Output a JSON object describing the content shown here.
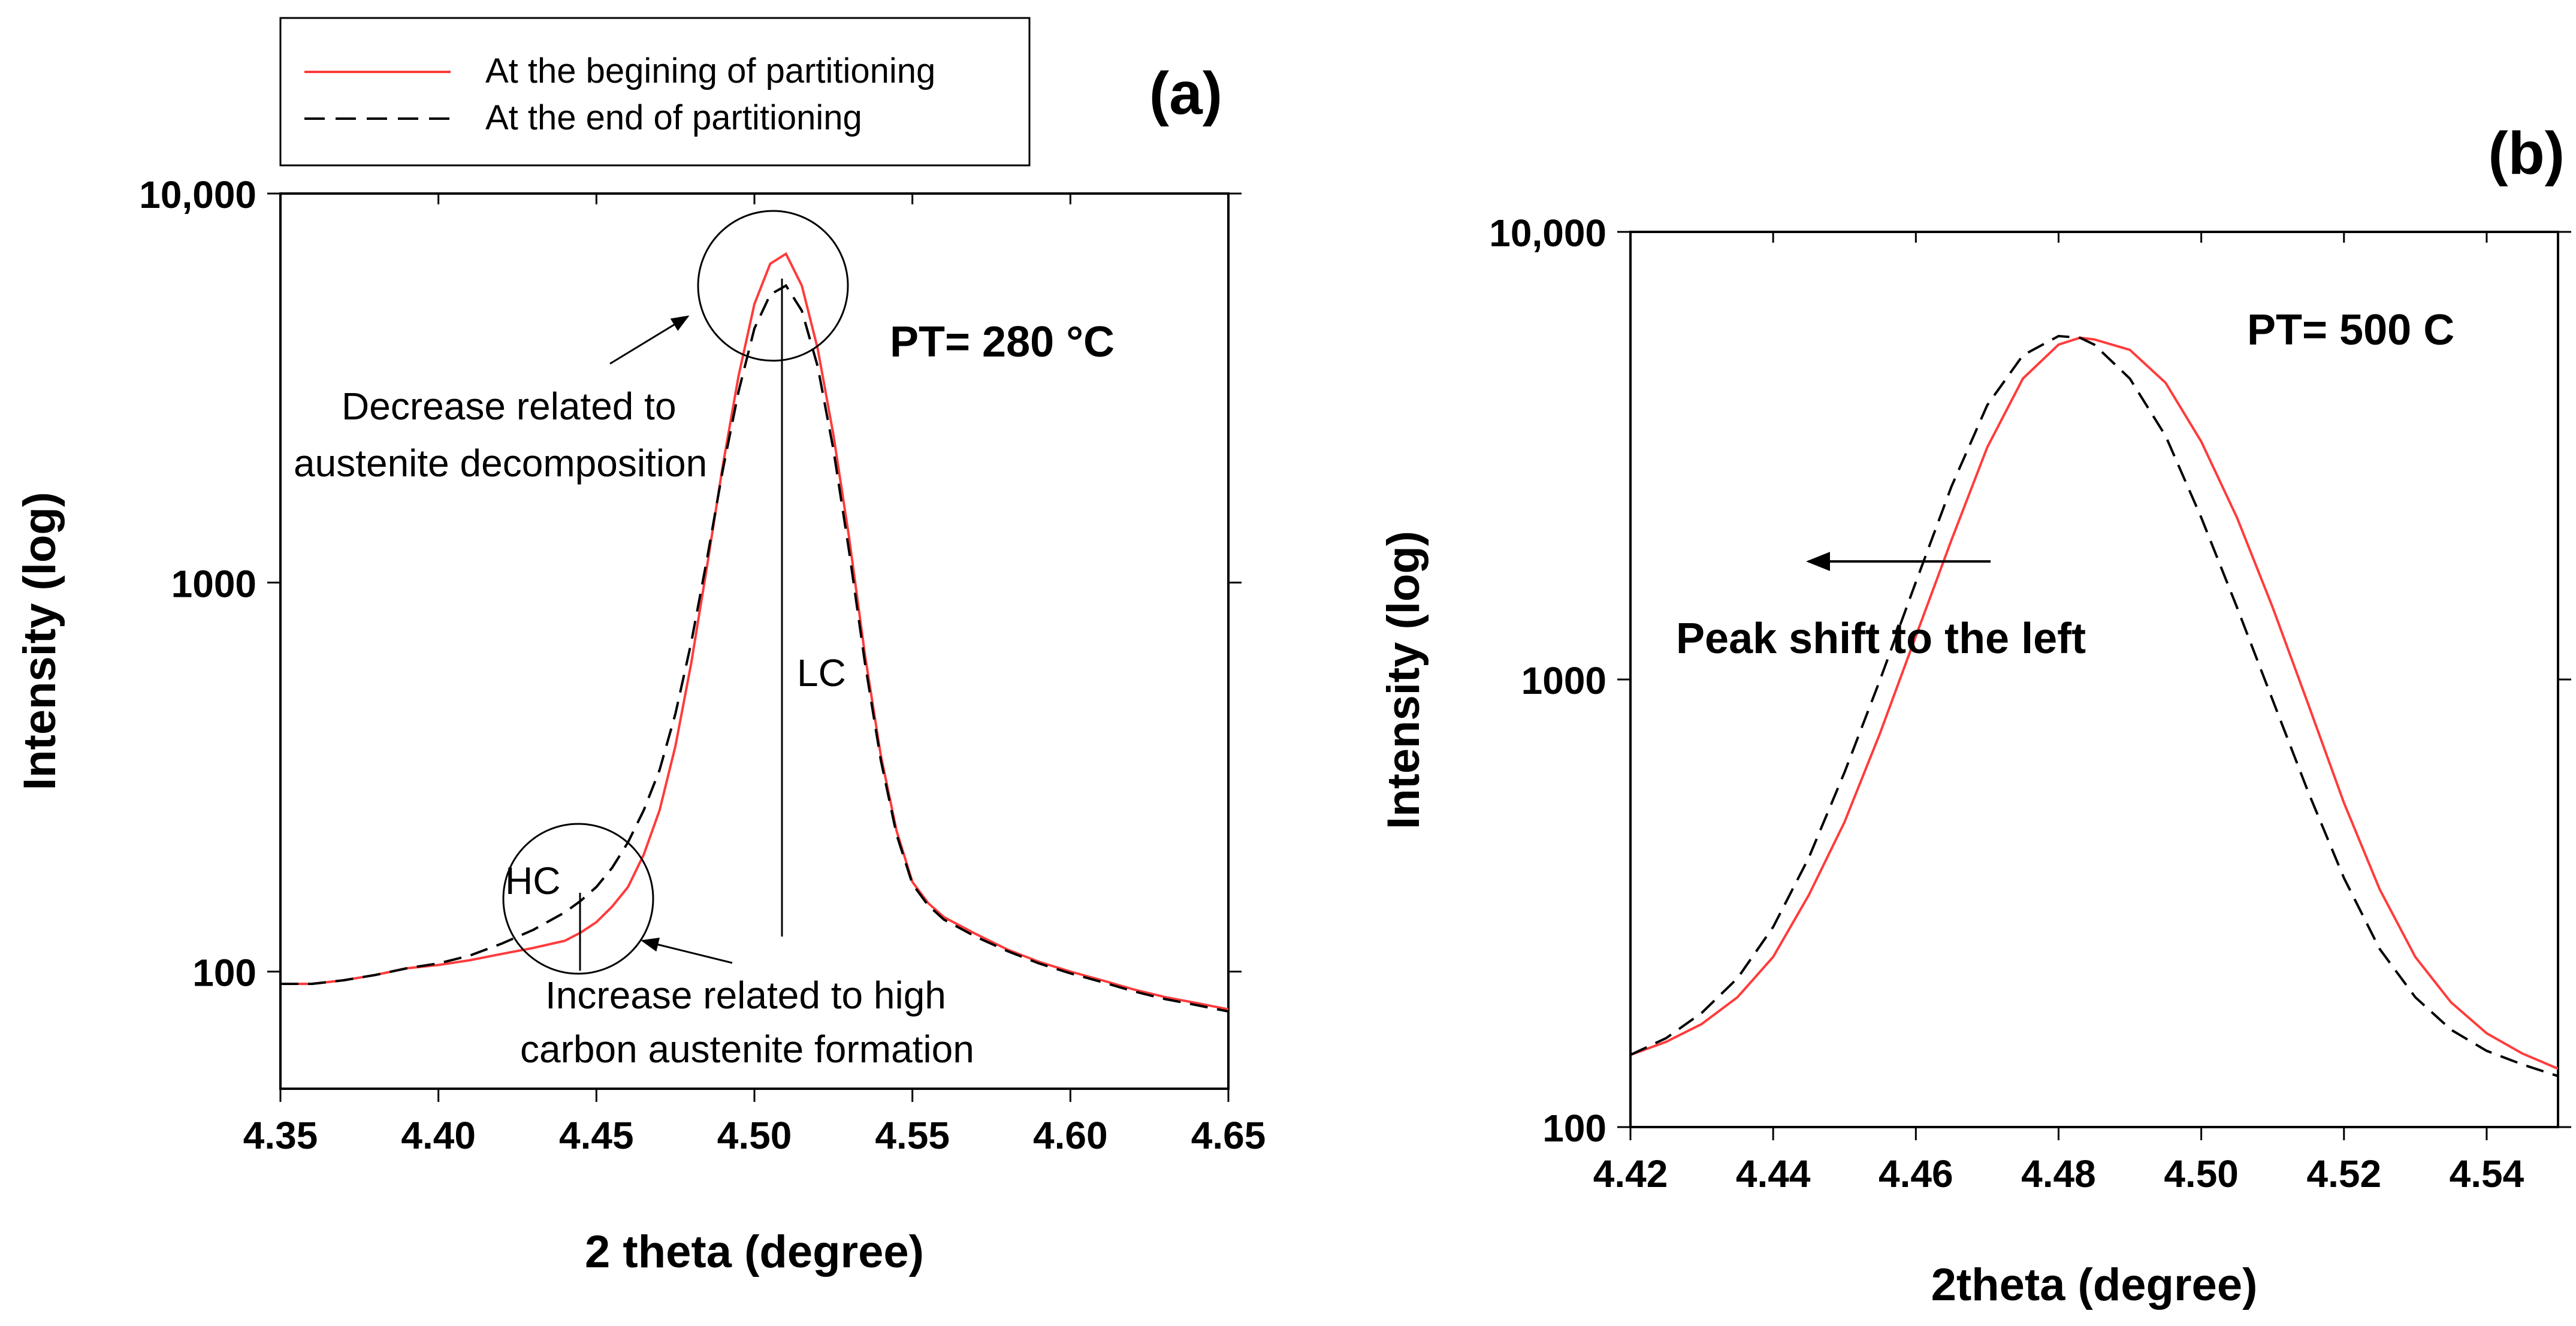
{
  "chart_data": [
    {
      "panel": "(a)",
      "type": "line",
      "yscale": "log",
      "xlim": [
        4.35,
        4.65
      ],
      "ylim": [
        50,
        10000
      ],
      "xlabel": "2 theta (degree)",
      "ylabel": "Intensity (log)",
      "xticks": [
        4.35,
        4.4,
        4.45,
        4.5,
        4.55,
        4.6,
        4.65
      ],
      "xtick_labels": [
        "4.35",
        "4.40",
        "4.45",
        "4.50",
        "4.55",
        "4.60",
        "4.65"
      ],
      "yticks": [
        100,
        1000,
        10000
      ],
      "ytick_labels": [
        "100",
        "1000",
        "10,000"
      ],
      "legend": {
        "placement": "top-left, above plot",
        "entries": [
          {
            "label": "At the begining of partitioning",
            "style": "solid",
            "color": "#ff3b3b"
          },
          {
            "label": "At the end of partitioning",
            "style": "dashed",
            "color": "#000000"
          }
        ]
      },
      "series": [
        {
          "name": "At the begining of partitioning",
          "color": "#ff3b3b",
          "style": "solid",
          "x": [
            4.35,
            4.36,
            4.37,
            4.38,
            4.39,
            4.4,
            4.41,
            4.42,
            4.43,
            4.44,
            4.445,
            4.45,
            4.455,
            4.46,
            4.465,
            4.47,
            4.475,
            4.48,
            4.485,
            4.49,
            4.495,
            4.5,
            4.505,
            4.51,
            4.515,
            4.52,
            4.525,
            4.53,
            4.535,
            4.54,
            4.545,
            4.55,
            4.555,
            4.56,
            4.57,
            4.58,
            4.59,
            4.6,
            4.61,
            4.62,
            4.63,
            4.64,
            4.65
          ],
          "y": [
            93,
            93,
            95,
            98,
            102,
            104,
            107,
            111,
            115,
            120,
            126,
            134,
            147,
            165,
            200,
            260,
            380,
            620,
            1100,
            2000,
            3400,
            5200,
            6600,
            7000,
            5800,
            4000,
            2400,
            1300,
            650,
            360,
            230,
            170,
            150,
            138,
            125,
            114,
            106,
            100,
            95,
            90,
            86,
            83,
            80
          ]
        },
        {
          "name": "At the end of partitioning",
          "color": "#000000",
          "style": "dashed",
          "x": [
            4.35,
            4.36,
            4.37,
            4.38,
            4.39,
            4.4,
            4.41,
            4.42,
            4.43,
            4.44,
            4.445,
            4.45,
            4.455,
            4.46,
            4.465,
            4.47,
            4.475,
            4.48,
            4.485,
            4.49,
            4.495,
            4.5,
            4.505,
            4.51,
            4.515,
            4.52,
            4.525,
            4.53,
            4.535,
            4.54,
            4.545,
            4.55,
            4.555,
            4.56,
            4.57,
            4.58,
            4.59,
            4.6,
            4.61,
            4.62,
            4.63,
            4.64,
            4.65
          ],
          "y": [
            93,
            93,
            95,
            98,
            102,
            105,
            110,
            118,
            128,
            142,
            152,
            165,
            185,
            215,
            260,
            330,
            460,
            700,
            1150,
            1950,
            3100,
            4500,
            5500,
            5800,
            5000,
            3600,
            2200,
            1200,
            620,
            350,
            225,
            168,
            148,
            136,
            123,
            113,
            105,
            99,
            94,
            89,
            85,
            82,
            79
          ]
        }
      ],
      "annotations": [
        {
          "text": "PT= 280 °C"
        },
        {
          "text": "Decrease related to"
        },
        {
          "text": "austenite decomposition"
        },
        {
          "text": "LC"
        },
        {
          "text": "HC"
        },
        {
          "text": "Increase related to high"
        },
        {
          "text": "carbon austenite formation"
        }
      ]
    },
    {
      "panel": "(b)",
      "type": "line",
      "yscale": "log",
      "xlim": [
        4.42,
        4.55
      ],
      "ylim": [
        100,
        10000
      ],
      "xlabel": "2theta (degree)",
      "ylabel": "Intensity (log)",
      "xticks": [
        4.42,
        4.44,
        4.46,
        4.48,
        4.5,
        4.52,
        4.54
      ],
      "xtick_labels": [
        "4.42",
        "4.44",
        "4.46",
        "4.48",
        "4.50",
        "4.52",
        "4.54"
      ],
      "yticks": [
        100,
        1000,
        10000
      ],
      "ytick_labels": [
        "100",
        "1000",
        "10,000"
      ],
      "series": [
        {
          "name": "At the begining of partitioning",
          "color": "#ff3b3b",
          "style": "solid",
          "x": [
            4.42,
            4.425,
            4.43,
            4.435,
            4.44,
            4.445,
            4.45,
            4.455,
            4.46,
            4.465,
            4.47,
            4.475,
            4.48,
            4.483,
            4.485,
            4.49,
            4.495,
            4.5,
            4.505,
            4.51,
            4.515,
            4.52,
            4.525,
            4.53,
            4.535,
            4.54,
            4.545,
            4.55
          ],
          "y": [
            145,
            155,
            170,
            195,
            240,
            330,
            480,
            760,
            1250,
            2050,
            3300,
            4700,
            5600,
            5800,
            5750,
            5450,
            4600,
            3400,
            2300,
            1450,
            880,
            530,
            340,
            240,
            190,
            162,
            146,
            135
          ]
        },
        {
          "name": "At the end of partitioning",
          "color": "#000000",
          "style": "dashed",
          "x": [
            4.42,
            4.425,
            4.43,
            4.435,
            4.44,
            4.445,
            4.45,
            4.455,
            4.46,
            4.465,
            4.47,
            4.475,
            4.48,
            4.483,
            4.485,
            4.49,
            4.495,
            4.5,
            4.505,
            4.51,
            4.515,
            4.52,
            4.525,
            4.53,
            4.535,
            4.54,
            4.545,
            4.55
          ],
          "y": [
            145,
            158,
            180,
            215,
            280,
            400,
            620,
            1000,
            1650,
            2700,
            4100,
            5300,
            5850,
            5800,
            5600,
            4700,
            3500,
            2300,
            1450,
            900,
            560,
            360,
            250,
            195,
            165,
            148,
            138,
            130
          ]
        }
      ],
      "annotations": [
        {
          "text": "PT= 500 C"
        },
        {
          "text": "Peak shift to the left"
        }
      ]
    }
  ]
}
